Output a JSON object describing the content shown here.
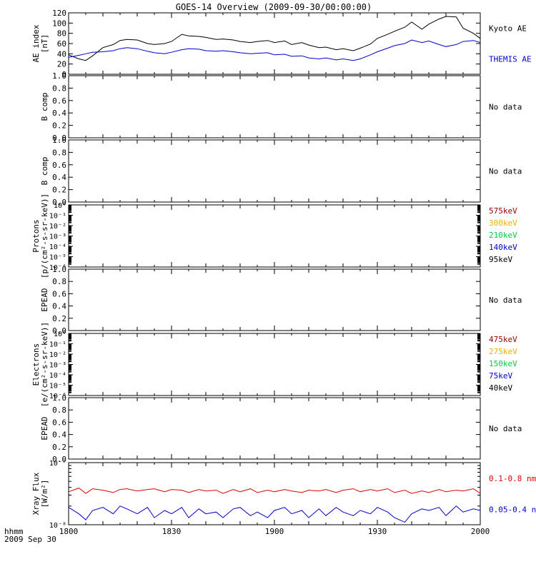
{
  "title": "GOES-14 Overview (2009-09-30/00:00:00)",
  "time_axis": {
    "ticks": [
      "1800",
      "1830",
      "1900",
      "1930",
      "2000"
    ],
    "corner_label_1": "hhmm",
    "corner_label_2": "2009 Sep 30"
  },
  "chart_data": [
    {
      "type": "line",
      "id": "ae",
      "ylabel_lines": [
        "AE index",
        "[nT]"
      ],
      "ylim": [
        0,
        120
      ],
      "yticks": [
        "0",
        "20",
        "40",
        "60",
        "80",
        "100",
        "120"
      ],
      "x": [
        0,
        3,
        5,
        7,
        10,
        13,
        15,
        17,
        20,
        23,
        25,
        28,
        30,
        33,
        35,
        38,
        40,
        43,
        45,
        48,
        50,
        53,
        55,
        58,
        60,
        63,
        65,
        68,
        70,
        73,
        75,
        78,
        80,
        83,
        85,
        88,
        90,
        93,
        95,
        98,
        100,
        103,
        105,
        108,
        110,
        113,
        115,
        118,
        120
      ],
      "series": [
        {
          "name": "Kyoto AE",
          "color": "#000000",
          "values": [
            38,
            30,
            27,
            36,
            52,
            58,
            66,
            68,
            67,
            60,
            58,
            60,
            64,
            78,
            75,
            74,
            72,
            68,
            69,
            67,
            64,
            62,
            64,
            66,
            62,
            65,
            58,
            62,
            57,
            52,
            53,
            48,
            50,
            46,
            51,
            59,
            70,
            78,
            84,
            92,
            102,
            88,
            98,
            108,
            113,
            112,
            90,
            80,
            70
          ]
        },
        {
          "name": "THEMIS AE",
          "color": "#0000cc",
          "values": [
            33,
            37,
            40,
            43,
            44,
            46,
            50,
            52,
            50,
            45,
            42,
            40,
            43,
            48,
            50,
            49,
            46,
            45,
            46,
            44,
            42,
            40,
            41,
            42,
            38,
            39,
            35,
            36,
            32,
            30,
            32,
            28,
            30,
            27,
            30,
            38,
            44,
            51,
            56,
            60,
            67,
            62,
            65,
            58,
            54,
            58,
            64,
            66,
            62
          ]
        }
      ]
    },
    {
      "type": "line",
      "id": "bcomp1",
      "ylabel_lines": [
        "B comp"
      ],
      "ylim": [
        0,
        1
      ],
      "yticks": [
        "0.0",
        "0.2",
        "0.4",
        "0.6",
        "0.8",
        "1.0"
      ],
      "note": "No data",
      "series": []
    },
    {
      "type": "line",
      "id": "bcomp2",
      "ylabel_lines": [
        "B comp"
      ],
      "ylim": [
        0,
        1
      ],
      "yticks": [
        "0.0",
        "0.2",
        "0.4",
        "0.6",
        "0.8",
        "1.0"
      ],
      "note": "No data",
      "series": []
    },
    {
      "type": "line",
      "id": "protons",
      "ylabel_lines": [
        "Protons",
        "[p/(cm²-s-sr-keV)]"
      ],
      "log_scale": true,
      "yticks": [
        "10⁻⁶",
        "10⁻⁵",
        "10⁻⁴",
        "10⁻³",
        "10⁻²",
        "10⁻¹",
        "10⁰"
      ],
      "legend": [
        {
          "label": "575keV",
          "color": "#990000"
        },
        {
          "label": "300keV",
          "color": "#e8b400"
        },
        {
          "label": "210keV",
          "color": "#00cc44"
        },
        {
          "label": "140keV",
          "color": "#0000cc"
        },
        {
          "label": "95keV",
          "color": "#000000"
        }
      ],
      "series": []
    },
    {
      "type": "line",
      "id": "epead1",
      "ylabel_lines": [
        "EPEAD"
      ],
      "ylim": [
        0,
        1
      ],
      "yticks": [
        "0.0",
        "0.2",
        "0.4",
        "0.6",
        "0.8",
        "1.0"
      ],
      "note": "No data",
      "series": []
    },
    {
      "type": "line",
      "id": "electrons",
      "ylabel_lines": [
        "Electrons",
        "[e/(cm²-s-sr-keV)]"
      ],
      "log_scale": true,
      "yticks": [
        "10⁻⁶",
        "10⁻⁵",
        "10⁻⁴",
        "10⁻³",
        "10⁻²",
        "10⁻¹",
        "10⁰"
      ],
      "legend": [
        {
          "label": "475keV",
          "color": "#990000"
        },
        {
          "label": "275keV",
          "color": "#e8b400"
        },
        {
          "label": "150keV",
          "color": "#00cc44"
        },
        {
          "label": "75keV",
          "color": "#0000cc"
        },
        {
          "label": "40keV",
          "color": "#000000"
        }
      ],
      "series": []
    },
    {
      "type": "line",
      "id": "epead2",
      "ylabel_lines": [
        "EPEAD"
      ],
      "ylim": [
        0,
        1
      ],
      "yticks": [
        "0.0",
        "0.2",
        "0.4",
        "0.6",
        "0.8",
        "1.0"
      ],
      "note": "No data",
      "series": []
    },
    {
      "type": "line",
      "id": "xray",
      "ylabel_lines": [
        "Xray Flux",
        "[W/m²]"
      ],
      "log_scale": true,
      "ylim": [
        1e-08,
        1e-07
      ],
      "yticks": [
        "10⁻⁸",
        "10⁻⁷"
      ],
      "x": [
        0,
        3,
        5,
        7,
        10,
        13,
        15,
        17,
        20,
        23,
        25,
        28,
        30,
        33,
        35,
        38,
        40,
        43,
        45,
        48,
        50,
        53,
        55,
        58,
        60,
        63,
        65,
        68,
        70,
        73,
        75,
        78,
        80,
        83,
        85,
        88,
        90,
        93,
        95,
        98,
        100,
        103,
        105,
        108,
        110,
        113,
        115,
        118,
        120
      ],
      "series": [
        {
          "name": "0.1-0.8 nm",
          "color": "#dd0000",
          "values": [
            3.4e-08,
            3.9e-08,
            3.2e-08,
            3.8e-08,
            3.6e-08,
            3.3e-08,
            3.7e-08,
            3.8e-08,
            3.5e-08,
            3.7e-08,
            3.8e-08,
            3.4e-08,
            3.7e-08,
            3.6e-08,
            3.3e-08,
            3.7e-08,
            3.5e-08,
            3.6e-08,
            3.2e-08,
            3.7e-08,
            3.4e-08,
            3.8e-08,
            3.3e-08,
            3.6e-08,
            3.4e-08,
            3.7e-08,
            3.5e-08,
            3.3e-08,
            3.6e-08,
            3.5e-08,
            3.7e-08,
            3.3e-08,
            3.6e-08,
            3.8e-08,
            3.4e-08,
            3.7e-08,
            3.5e-08,
            3.8e-08,
            3.3e-08,
            3.6e-08,
            3.2e-08,
            3.5e-08,
            3.3e-08,
            3.7e-08,
            3.4e-08,
            3.6e-08,
            3.5e-08,
            3.8e-08,
            3.2e-08
          ]
        },
        {
          "name": "0.05-0.4 nm",
          "color": "#0000cc",
          "values": [
            1.9e-08,
            1.5e-08,
            1.2e-08,
            1.7e-08,
            1.9e-08,
            1.5e-08,
            2e-08,
            1.8e-08,
            1.5e-08,
            1.9e-08,
            1.3e-08,
            1.7e-08,
            1.5e-08,
            1.9e-08,
            1.3e-08,
            1.8e-08,
            1.5e-08,
            1.6e-08,
            1.3e-08,
            1.8e-08,
            1.9e-08,
            1.4e-08,
            1.6e-08,
            1.3e-08,
            1.7e-08,
            1.9e-08,
            1.5e-08,
            1.7e-08,
            1.3e-08,
            1.8e-08,
            1.4e-08,
            1.9e-08,
            1.6e-08,
            1.4e-08,
            1.7e-08,
            1.5e-08,
            1.9e-08,
            1.6e-08,
            1.3e-08,
            1.1e-08,
            1.5e-08,
            1.8e-08,
            1.7e-08,
            1.9e-08,
            1.4e-08,
            2e-08,
            1.6e-08,
            1.8e-08,
            1.7e-08
          ]
        }
      ]
    }
  ]
}
